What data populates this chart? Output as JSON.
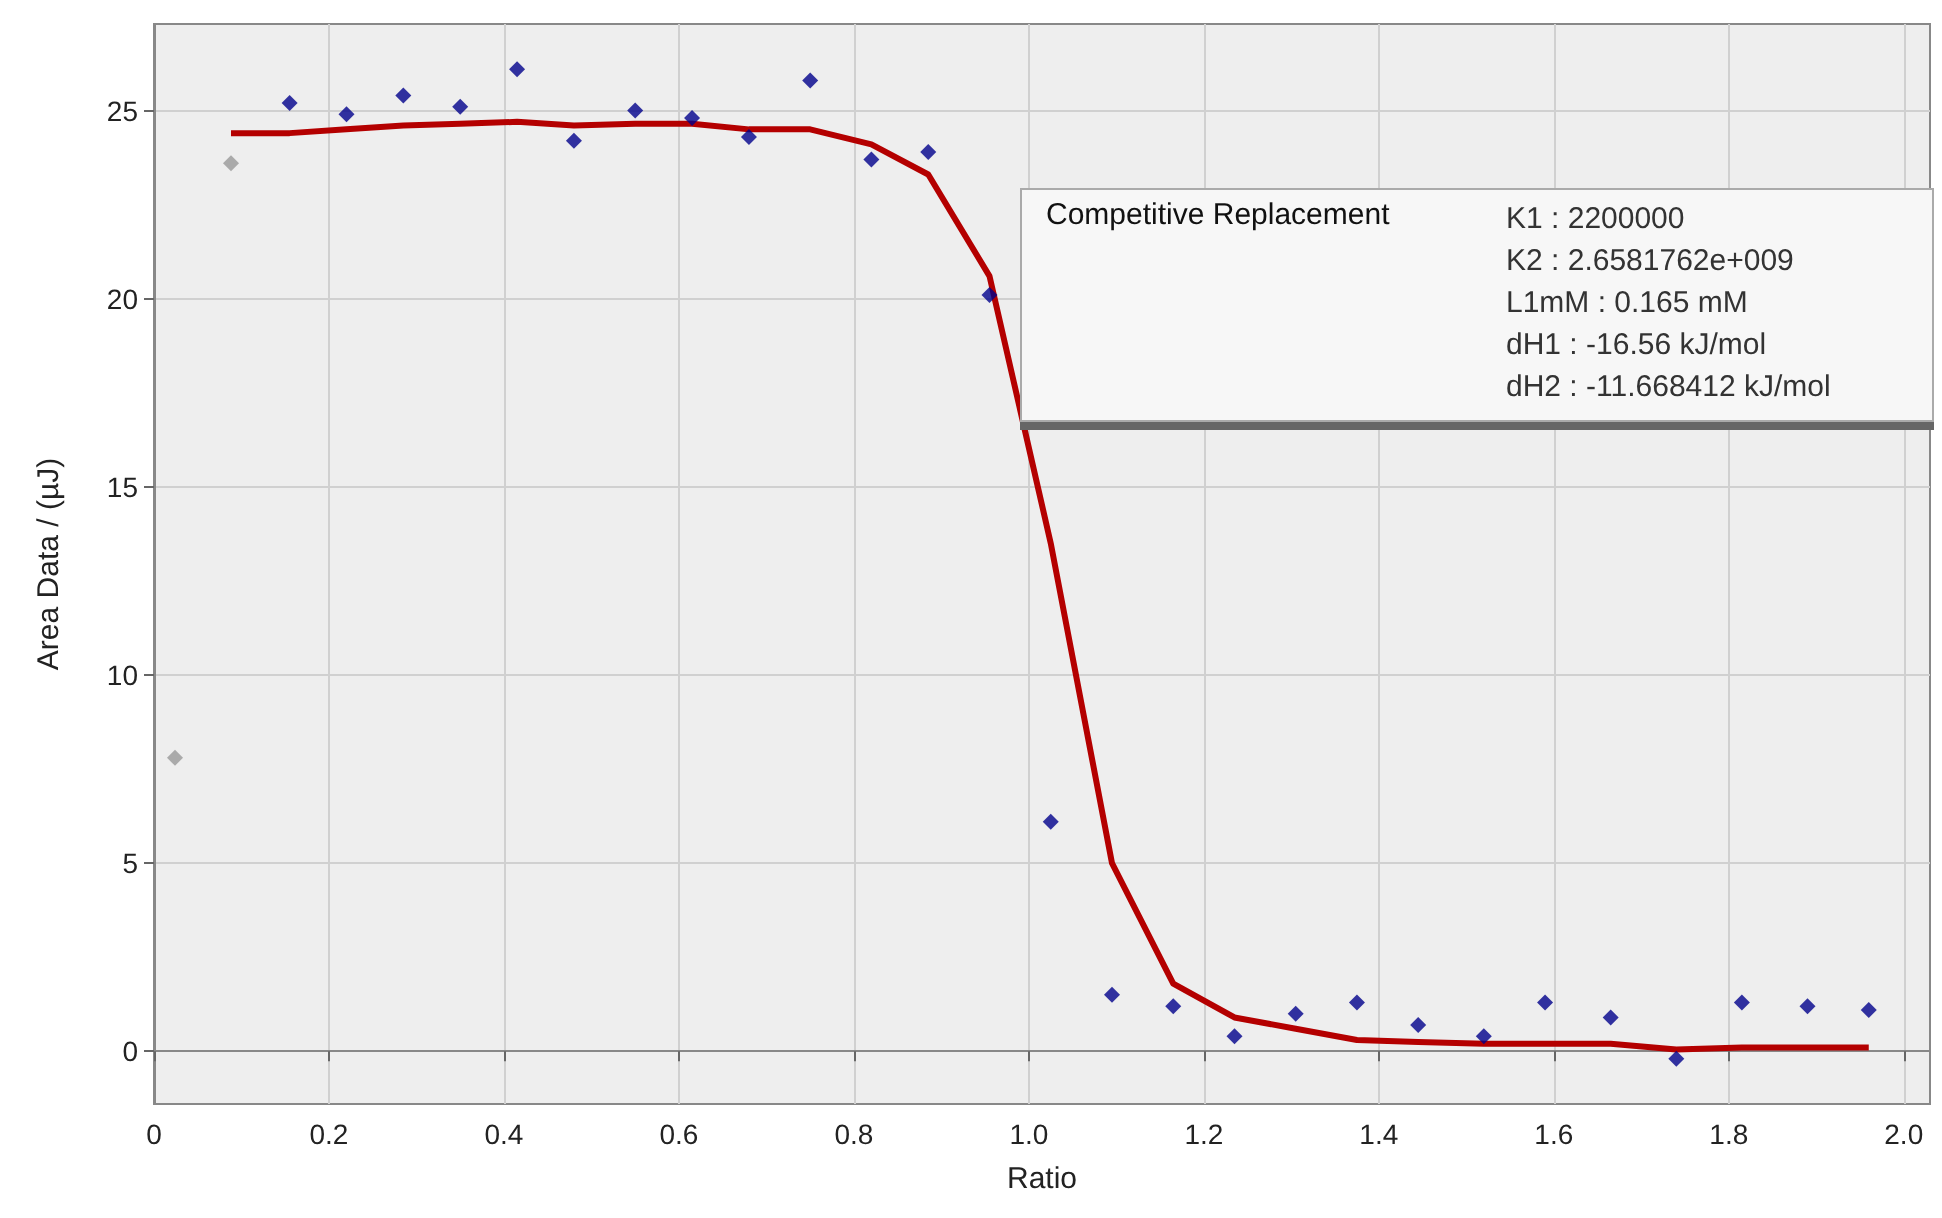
{
  "chart_data": {
    "type": "scatter",
    "xlabel": "Ratio",
    "ylabel": "Area Data / (µJ)",
    "xlim": [
      0,
      2.03
    ],
    "ylim": [
      -1.4,
      27.3
    ],
    "xticks": [
      0,
      0.2,
      0.4,
      0.6,
      0.8,
      {
        "value": 1,
        "label": "1.0"
      },
      1.2,
      1.4,
      1.6,
      1.8,
      {
        "value": 2,
        "label": "2.0"
      }
    ],
    "yticks": [
      0,
      5,
      10,
      15,
      20,
      25
    ],
    "grid": true,
    "marker": "diamond",
    "series": [
      {
        "color": "#999999",
        "x": [
          0.024,
          0.088
        ],
        "values": [
          7.8,
          23.6
        ]
      },
      {
        "color": "#00008b",
        "x": [
          0.155,
          0.22,
          0.285,
          0.35,
          0.415,
          0.48,
          0.55,
          0.615,
          0.68,
          0.75,
          0.82,
          0.885,
          0.955,
          1.025,
          1.095,
          1.165,
          1.235,
          1.305,
          1.375,
          1.445,
          1.52,
          1.59,
          1.665,
          1.74,
          1.815,
          1.89,
          1.96
        ],
        "values": [
          25.2,
          24.9,
          25.4,
          25.1,
          26.1,
          24.2,
          25.0,
          24.8,
          24.3,
          25.8,
          23.7,
          23.9,
          20.1,
          6.1,
          1.5,
          1.2,
          0.4,
          1.0,
          1.3,
          0.7,
          0.4,
          1.3,
          0.9,
          -0.2,
          1.3,
          1.2,
          1.1
        ]
      },
      {
        "type": "line",
        "color": "#b40000",
        "marker": "none",
        "line_style": "solid",
        "x": [
          0.088,
          0.155,
          0.22,
          0.285,
          0.35,
          0.415,
          0.48,
          0.55,
          0.615,
          0.68,
          0.75,
          0.82,
          0.885,
          0.955,
          1.025,
          1.095,
          1.165,
          1.235,
          1.305,
          1.375,
          1.445,
          1.52,
          1.59,
          1.665,
          1.74,
          1.815,
          1.89,
          1.96
        ],
        "values": [
          24.4,
          24.4,
          24.5,
          24.6,
          24.65,
          24.7,
          24.6,
          24.65,
          24.65,
          24.5,
          24.5,
          24.1,
          23.3,
          20.6,
          13.5,
          5.0,
          1.8,
          0.9,
          0.6,
          0.3,
          0.25,
          0.2,
          0.2,
          0.2,
          0.05,
          0.1,
          0.1,
          0.1
        ]
      }
    ],
    "annotations": [
      "Competitive Replacement",
      "K1 : 2200000",
      "K2 : 2.6581762e+009",
      "L1mM : 0.165 mM",
      "dH1 : -16.56 kJ/mol",
      "dH2 : -11.668412 kJ/mol"
    ]
  }
}
